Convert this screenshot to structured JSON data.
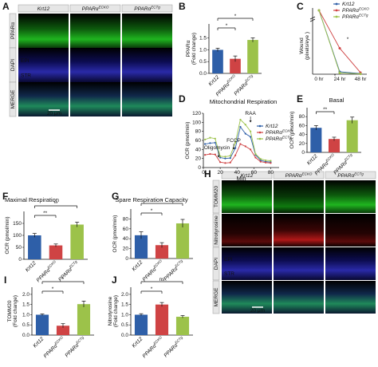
{
  "colors": {
    "krt12": "#2e5fa8",
    "cko": "#cf4344",
    "ctg": "#9cc24a",
    "green_stain": "#1fb51f",
    "red_stain": "#b01818",
    "blue_stain": "#2a2aa8"
  },
  "panels": {
    "A": {
      "letter": "A",
      "cols": [
        "Krt12",
        "PPARα^ECKO",
        "PPARα^ECTg"
      ],
      "rows": [
        "PPARα",
        "DAPI",
        "MERGE"
      ],
      "epi": "EPI",
      "str": "STR",
      "scale": "20 μm"
    },
    "H": {
      "letter": "H",
      "cols": [
        "Krt12",
        "PPARα^ECKO",
        "PPARα^ECTg"
      ],
      "rows": [
        "TOMM20",
        "Nitrotyrosine",
        "DAPI",
        "MERGE"
      ],
      "epi": "EPI",
      "str": "STR",
      "scale": "20 μm"
    }
  },
  "chart_data": [
    {
      "id": "B",
      "type": "bar",
      "letter": "B",
      "categories": [
        "Krt12",
        "PPARα^ECKO",
        "PPARα^ECTg"
      ],
      "values": [
        1.0,
        0.62,
        1.42
      ],
      "errors": [
        0.07,
        0.12,
        0.09
      ],
      "ylabel": "PPARα",
      "ylabel2": "(Fold change)",
      "ylim": [
        0,
        2.1
      ],
      "yticks": [
        0.0,
        0.5,
        1.0,
        1.5
      ],
      "sig": [
        {
          "a": 0,
          "b": 1,
          "label": "*",
          "level": 0
        },
        {
          "a": 0,
          "b": 2,
          "label": "*",
          "level": 1
        }
      ]
    },
    {
      "id": "C",
      "type": "line",
      "letter": "C",
      "x": [
        "0 hr",
        "24 hr",
        "48 hr"
      ],
      "xlabel": "",
      "ylabel": "Wound",
      "ylabel2": "(pixels/eye )",
      "yticks": [
        0,
        1000,
        2000,
        3000,
        140000
      ],
      "series": [
        {
          "name": "Krt12",
          "values": [
            140000,
            150,
            40
          ]
        },
        {
          "name": "PPARα^ECKO",
          "values": [
            140000,
            1600,
            100
          ]
        },
        {
          "name": "PPARα^ECTg",
          "values": [
            140000,
            80,
            20
          ]
        }
      ],
      "sig": [
        "*",
        "*"
      ]
    },
    {
      "id": "D",
      "type": "line",
      "letter": "D",
      "title": "Mitochondrial Respiration",
      "xlabel": "Min",
      "ylabel": "OCR (pmol/min)",
      "xlim": [
        0,
        90
      ],
      "ylim": [
        0,
        120
      ],
      "xticks": [
        0,
        20,
        40,
        60,
        80
      ],
      "yticks": [
        0,
        20,
        40,
        60,
        80,
        100,
        120
      ],
      "annotations": [
        "Oligomycin",
        "FCCP",
        "RAA"
      ],
      "series": [
        {
          "name": "Krt12",
          "x": [
            2,
            8,
            14,
            20,
            26,
            32,
            38,
            44,
            50,
            56,
            62,
            68,
            74,
            80
          ],
          "values": [
            52,
            54,
            55,
            22,
            20,
            21,
            43,
            90,
            75,
            68,
            28,
            16,
            13,
            12
          ]
        },
        {
          "name": "PPARα^ECKO",
          "x": [
            2,
            8,
            14,
            20,
            26,
            32,
            38,
            44,
            50,
            56,
            62,
            68,
            74,
            80
          ],
          "values": [
            28,
            30,
            29,
            12,
            10,
            11,
            27,
            52,
            47,
            40,
            22,
            13,
            11,
            10
          ]
        },
        {
          "name": "PPARα^ECTg",
          "x": [
            2,
            8,
            14,
            20,
            26,
            32,
            38,
            44,
            50,
            56,
            62,
            68,
            74,
            80
          ],
          "values": [
            62,
            66,
            64,
            25,
            24,
            26,
            55,
            106,
            95,
            80,
            30,
            19,
            16,
            15
          ]
        }
      ]
    },
    {
      "id": "E",
      "type": "bar",
      "letter": "E",
      "title": "Basal",
      "categories": [
        "Krt12",
        "PPARα^ECKO",
        "PPARα^ECTg"
      ],
      "values": [
        55,
        30,
        72
      ],
      "errors": [
        5,
        4,
        7
      ],
      "ylabel": "OCR (pmol/min)",
      "ylim": [
        0,
        100
      ],
      "yticks": [
        0,
        20,
        40,
        60,
        80
      ],
      "sig": [
        {
          "a": 0,
          "b": 1,
          "label": "**",
          "level": 0
        }
      ]
    },
    {
      "id": "F",
      "type": "bar",
      "letter": "F",
      "title": "Maximal Respiration",
      "categories": [
        "Krt12",
        "PPARα^ECKO",
        "PPARα^ECTg"
      ],
      "values": [
        100,
        58,
        145
      ],
      "errors": [
        8,
        6,
        10
      ],
      "ylabel": "OCR (pmol/min)",
      "ylim": [
        0,
        200
      ],
      "yticks": [
        0,
        50,
        100,
        150
      ],
      "sig": [
        {
          "a": 0,
          "b": 1,
          "label": "**",
          "level": 0
        },
        {
          "a": 0,
          "b": 2,
          "label": "**",
          "level": 1
        }
      ]
    },
    {
      "id": "G",
      "type": "bar",
      "letter": "G",
      "title": "Spare Respiration Capacity",
      "categories": [
        "Krt12",
        "PPARα^ECKO",
        "PPARα^ECTg"
      ],
      "values": [
        47,
        27,
        71
      ],
      "errors": [
        7,
        5,
        8
      ],
      "ylabel": "OCR (pmol/min)",
      "ylim": [
        0,
        100
      ],
      "yticks": [
        0,
        20,
        40,
        60,
        80
      ],
      "sig": [
        {
          "a": 0,
          "b": 1,
          "label": "*",
          "level": 0
        },
        {
          "a": 0,
          "b": 2,
          "label": "*",
          "level": 1
        }
      ]
    },
    {
      "id": "I",
      "type": "bar",
      "letter": "I",
      "categories": [
        "Krt12",
        "PPARα^ECKO",
        "PPARα^ECTg"
      ],
      "values": [
        1.0,
        0.46,
        1.52
      ],
      "errors": [
        0.04,
        0.1,
        0.15
      ],
      "ylabel": "TOMM20",
      "ylabel2": "(Fold change)",
      "ylim": [
        0,
        2.35
      ],
      "yticks": [
        0.0,
        0.5,
        1.0,
        1.5,
        2.0
      ],
      "sig": [
        {
          "a": 0,
          "b": 1,
          "label": "*",
          "level": 0
        },
        {
          "a": 0,
          "b": 2,
          "label": "*",
          "level": 1
        }
      ]
    },
    {
      "id": "J",
      "type": "bar",
      "letter": "J",
      "categories": [
        "Krt12",
        "PPARα^ECKO",
        "PPARα^ECTg"
      ],
      "values": [
        1.0,
        1.5,
        0.9
      ],
      "errors": [
        0.05,
        0.1,
        0.06
      ],
      "ylabel": "Nitrotyrosine",
      "ylabel2": "(Fold change)",
      "ylim": [
        0,
        2.35
      ],
      "yticks": [
        0.0,
        0.5,
        1.0,
        1.5,
        2.0
      ],
      "sig": [
        {
          "a": 0,
          "b": 1,
          "label": "*",
          "level": 0
        },
        {
          "a": 0,
          "b": 2,
          "label": "ns",
          "level": 1
        }
      ]
    }
  ]
}
